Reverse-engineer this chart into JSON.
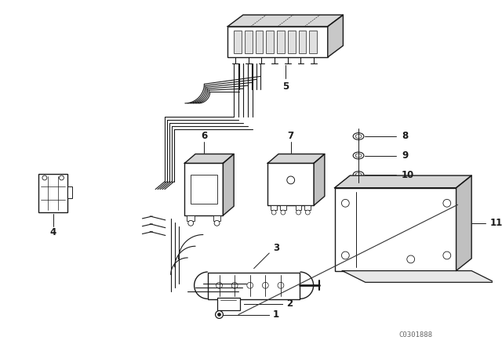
{
  "bg_color": "#ffffff",
  "fg_color": "#1a1a1a",
  "watermark": "C0301888",
  "lw_main": 1.0,
  "lw_wire": 0.8,
  "lw_thin": 0.5,
  "label_fontsize": 8.5
}
